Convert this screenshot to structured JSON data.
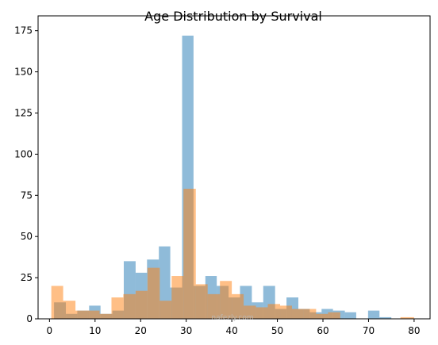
{
  "chart_data": {
    "type": "histogram",
    "title": "Age Distribution by Survival",
    "xlabel": "",
    "ylabel": "",
    "xlim": [
      -2.5,
      83.5
    ],
    "ylim": [
      0,
      184
    ],
    "x_ticks": [
      0,
      10,
      20,
      30,
      40,
      50,
      60,
      70,
      80
    ],
    "y_ticks": [
      0,
      25,
      50,
      75,
      100,
      125,
      150,
      175
    ],
    "grid": false,
    "legend": "none",
    "series": [
      {
        "color": "#1f77b4",
        "opacity": 0.5,
        "bins": [
          {
            "x0": 1,
            "x1": 3.6,
            "count": 10
          },
          {
            "x0": 3.6,
            "x1": 6.1,
            "count": 3
          },
          {
            "x0": 6.1,
            "x1": 8.7,
            "count": 5
          },
          {
            "x0": 8.7,
            "x1": 11.2,
            "count": 8
          },
          {
            "x0": 11.2,
            "x1": 13.8,
            "count": 3
          },
          {
            "x0": 13.8,
            "x1": 16.3,
            "count": 5
          },
          {
            "x0": 16.3,
            "x1": 18.9,
            "count": 35
          },
          {
            "x0": 18.9,
            "x1": 21.4,
            "count": 28
          },
          {
            "x0": 21.4,
            "x1": 24.0,
            "count": 36
          },
          {
            "x0": 24.0,
            "x1": 26.5,
            "count": 44
          },
          {
            "x0": 26.5,
            "x1": 29.1,
            "count": 19
          },
          {
            "x0": 29.1,
            "x1": 31.6,
            "count": 172
          },
          {
            "x0": 31.6,
            "x1": 34.2,
            "count": 20
          },
          {
            "x0": 34.2,
            "x1": 36.7,
            "count": 26
          },
          {
            "x0": 36.7,
            "x1": 39.3,
            "count": 20
          },
          {
            "x0": 39.3,
            "x1": 41.8,
            "count": 13
          },
          {
            "x0": 41.8,
            "x1": 44.4,
            "count": 20
          },
          {
            "x0": 44.4,
            "x1": 46.9,
            "count": 10
          },
          {
            "x0": 46.9,
            "x1": 49.5,
            "count": 20
          },
          {
            "x0": 49.5,
            "x1": 52.0,
            "count": 6
          },
          {
            "x0": 52.0,
            "x1": 54.6,
            "count": 13
          },
          {
            "x0": 54.6,
            "x1": 57.1,
            "count": 6
          },
          {
            "x0": 57.1,
            "x1": 59.7,
            "count": 4
          },
          {
            "x0": 59.7,
            "x1": 62.2,
            "count": 6
          },
          {
            "x0": 62.2,
            "x1": 64.8,
            "count": 5
          },
          {
            "x0": 64.8,
            "x1": 67.3,
            "count": 4
          },
          {
            "x0": 67.3,
            "x1": 69.9,
            "count": 0
          },
          {
            "x0": 69.9,
            "x1": 72.4,
            "count": 5
          },
          {
            "x0": 72.4,
            "x1": 75.0,
            "count": 1
          }
        ]
      },
      {
        "color": "#ff7f0e",
        "opacity": 0.5,
        "bins": [
          {
            "x0": 0.4,
            "x1": 3.0,
            "count": 20
          },
          {
            "x0": 3.0,
            "x1": 5.7,
            "count": 11
          },
          {
            "x0": 5.7,
            "x1": 8.3,
            "count": 5
          },
          {
            "x0": 8.3,
            "x1": 11.0,
            "count": 5
          },
          {
            "x0": 11.0,
            "x1": 13.6,
            "count": 3
          },
          {
            "x0": 13.6,
            "x1": 16.2,
            "count": 13
          },
          {
            "x0": 16.2,
            "x1": 18.9,
            "count": 15
          },
          {
            "x0": 18.9,
            "x1": 21.5,
            "count": 17
          },
          {
            "x0": 21.5,
            "x1": 24.2,
            "count": 31
          },
          {
            "x0": 24.2,
            "x1": 26.8,
            "count": 11
          },
          {
            "x0": 26.8,
            "x1": 29.4,
            "count": 26
          },
          {
            "x0": 29.4,
            "x1": 32.1,
            "count": 79
          },
          {
            "x0": 32.1,
            "x1": 34.7,
            "count": 21
          },
          {
            "x0": 34.7,
            "x1": 37.4,
            "count": 15
          },
          {
            "x0": 37.4,
            "x1": 40.0,
            "count": 23
          },
          {
            "x0": 40.0,
            "x1": 42.6,
            "count": 15
          },
          {
            "x0": 42.6,
            "x1": 45.3,
            "count": 8
          },
          {
            "x0": 45.3,
            "x1": 47.9,
            "count": 7
          },
          {
            "x0": 47.9,
            "x1": 50.6,
            "count": 9
          },
          {
            "x0": 50.6,
            "x1": 53.2,
            "count": 8
          },
          {
            "x0": 53.2,
            "x1": 55.8,
            "count": 6
          },
          {
            "x0": 55.8,
            "x1": 58.5,
            "count": 6
          },
          {
            "x0": 58.5,
            "x1": 61.1,
            "count": 3
          },
          {
            "x0": 61.1,
            "x1": 63.8,
            "count": 4
          },
          {
            "x0": 63.8,
            "x1": 66.4,
            "count": 0
          },
          {
            "x0": 66.4,
            "x1": 69.0,
            "count": 0
          },
          {
            "x0": 69.0,
            "x1": 71.7,
            "count": 0
          },
          {
            "x0": 71.7,
            "x1": 74.3,
            "count": 0
          },
          {
            "x0": 74.3,
            "x1": 77.0,
            "count": 0
          },
          {
            "x0": 77.0,
            "x1": 80.0,
            "count": 1
          }
        ]
      }
    ]
  },
  "watermark": {
    "text": "nafezly.com"
  }
}
